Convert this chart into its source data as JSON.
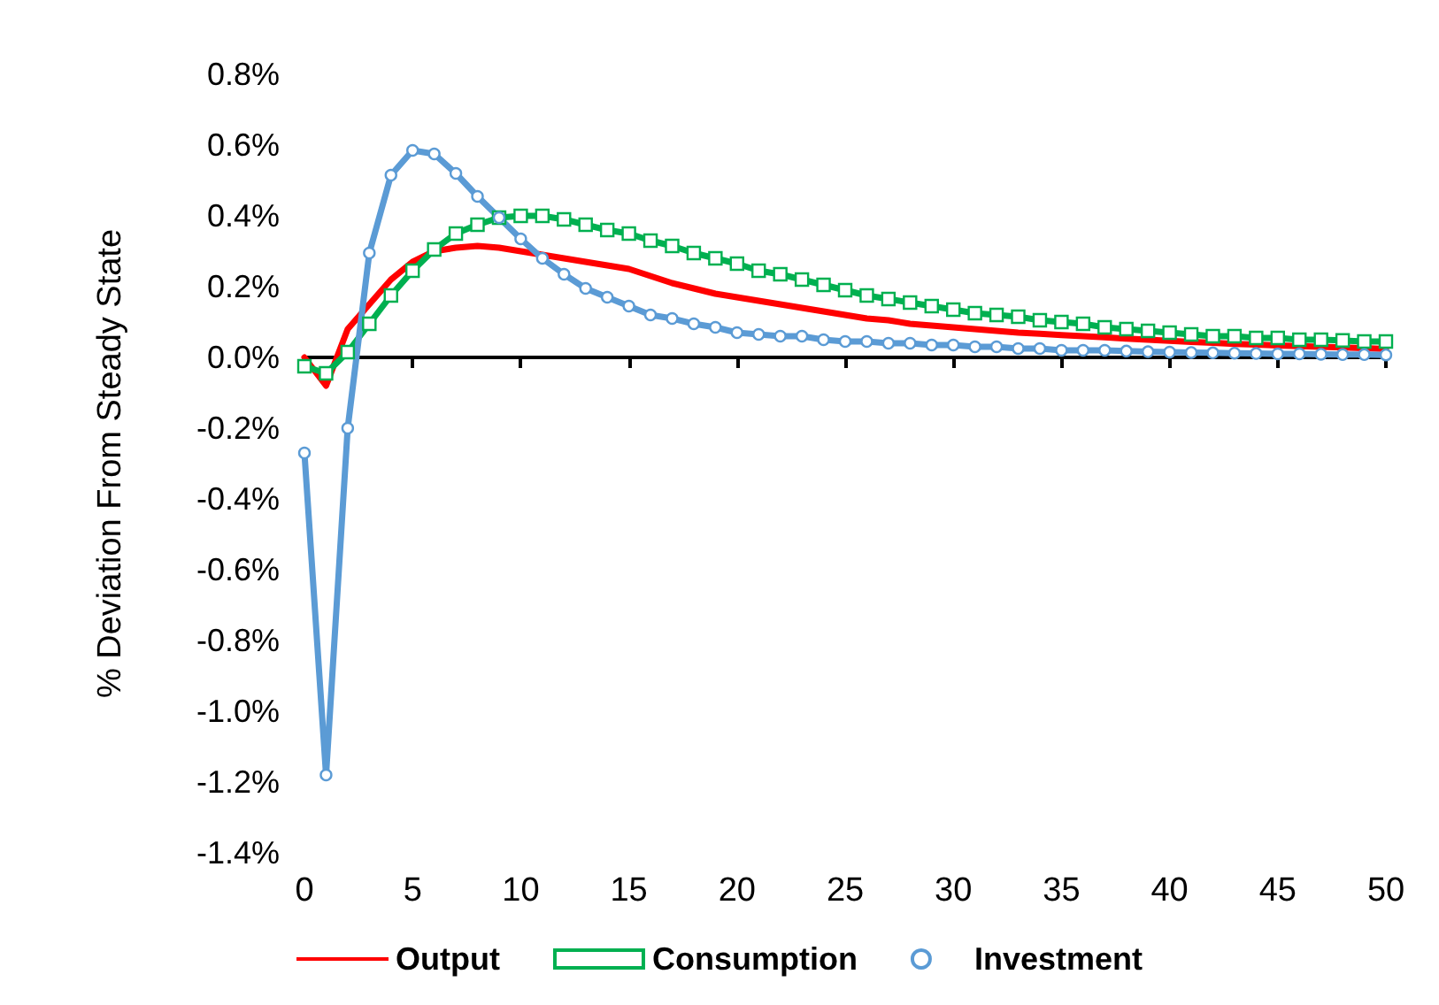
{
  "chart_data": {
    "type": "line",
    "ylabel": "% Deviation From Steady State",
    "x": [
      0,
      1,
      2,
      3,
      4,
      5,
      6,
      7,
      8,
      9,
      10,
      11,
      12,
      13,
      14,
      15,
      16,
      17,
      18,
      19,
      20,
      21,
      22,
      23,
      24,
      25,
      26,
      27,
      28,
      29,
      30,
      31,
      32,
      33,
      34,
      35,
      36,
      37,
      38,
      39,
      40,
      41,
      42,
      43,
      44,
      45,
      46,
      47,
      48,
      49,
      50
    ],
    "series": [
      {
        "name": "Output",
        "color": "#ff0000",
        "marker": "none",
        "values": [
          0.0,
          -0.08,
          0.08,
          0.15,
          0.22,
          0.27,
          0.3,
          0.31,
          0.315,
          0.31,
          0.3,
          0.29,
          0.28,
          0.27,
          0.26,
          0.25,
          0.23,
          0.21,
          0.195,
          0.18,
          0.17,
          0.16,
          0.15,
          0.14,
          0.13,
          0.12,
          0.11,
          0.105,
          0.095,
          0.09,
          0.085,
          0.08,
          0.075,
          0.07,
          0.067,
          0.063,
          0.06,
          0.057,
          0.053,
          0.05,
          0.047,
          0.044,
          0.041,
          0.038,
          0.036,
          0.034,
          0.032,
          0.03,
          0.028,
          0.026,
          0.024
        ]
      },
      {
        "name": "Consumption",
        "color": "#00b050",
        "marker": "square",
        "values": [
          -0.025,
          -0.045,
          0.015,
          0.095,
          0.175,
          0.245,
          0.305,
          0.35,
          0.375,
          0.395,
          0.4,
          0.4,
          0.39,
          0.375,
          0.36,
          0.35,
          0.33,
          0.315,
          0.295,
          0.28,
          0.265,
          0.245,
          0.235,
          0.22,
          0.205,
          0.19,
          0.175,
          0.165,
          0.155,
          0.145,
          0.135,
          0.125,
          0.12,
          0.115,
          0.105,
          0.1,
          0.095,
          0.085,
          0.08,
          0.075,
          0.07,
          0.065,
          0.06,
          0.06,
          0.055,
          0.055,
          0.05,
          0.05,
          0.048,
          0.045,
          0.045
        ]
      },
      {
        "name": "Investment",
        "color": "#5b9bd5",
        "marker": "circle",
        "values": [
          -0.27,
          -1.18,
          -0.2,
          0.295,
          0.515,
          0.585,
          0.575,
          0.52,
          0.455,
          0.395,
          0.335,
          0.28,
          0.235,
          0.195,
          0.17,
          0.145,
          0.12,
          0.11,
          0.095,
          0.085,
          0.07,
          0.065,
          0.06,
          0.06,
          0.05,
          0.045,
          0.045,
          0.04,
          0.04,
          0.035,
          0.035,
          0.03,
          0.03,
          0.025,
          0.025,
          0.02,
          0.02,
          0.02,
          0.018,
          0.016,
          0.015,
          0.014,
          0.013,
          0.012,
          0.011,
          0.01,
          0.01,
          0.009,
          0.008,
          0.008,
          0.007
        ]
      }
    ],
    "xlim": [
      0,
      50
    ],
    "xticks": [
      0,
      5,
      10,
      15,
      20,
      25,
      30,
      35,
      40,
      45,
      50
    ],
    "ylim": [
      -1.4,
      0.8
    ],
    "yticks": [
      {
        "value": 0.8,
        "label": "0.8%"
      },
      {
        "value": 0.6,
        "label": "0.6%"
      },
      {
        "value": 0.4,
        "label": "0.4%"
      },
      {
        "value": 0.2,
        "label": "0.2%"
      },
      {
        "value": 0.0,
        "label": "0.0%"
      },
      {
        "value": -0.2,
        "label": "-0.2%"
      },
      {
        "value": -0.4,
        "label": "-0.4%"
      },
      {
        "value": -0.6,
        "label": "-0.6%"
      },
      {
        "value": -0.8,
        "label": "-0.8%"
      },
      {
        "value": -1.0,
        "label": "-1.0%"
      },
      {
        "value": -1.2,
        "label": "-1.2%"
      },
      {
        "value": -1.4,
        "label": "-1.4%"
      }
    ],
    "legend": "bottom",
    "line_style": "solid"
  }
}
